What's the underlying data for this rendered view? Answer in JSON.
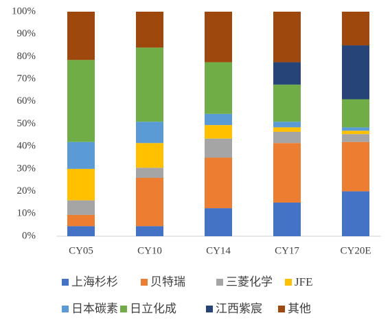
{
  "chart_data": {
    "type": "stacked_bar",
    "categories": [
      "CY05",
      "CY10",
      "CY14",
      "CY17",
      "CY20E"
    ],
    "series": [
      {
        "name": "上海杉杉",
        "color": "#4472c4",
        "values": [
          4.5,
          4.5,
          12.5,
          15,
          20
        ]
      },
      {
        "name": "贝特瑞",
        "color": "#ed7d31",
        "values": [
          5,
          21.5,
          22.5,
          26.5,
          22
        ]
      },
      {
        "name": "三菱化学",
        "color": "#a5a5a5",
        "values": [
          6.5,
          4.5,
          8.5,
          5,
          3.5
        ]
      },
      {
        "name": "JFE",
        "color": "#ffc000",
        "values": [
          14,
          11,
          6,
          2,
          1.5
        ]
      },
      {
        "name": "日本碳素",
        "color": "#5b9bd5",
        "values": [
          12,
          9.5,
          5,
          2.5,
          1.5
        ]
      },
      {
        "name": "日立化成",
        "color": "#70ad47",
        "values": [
          36.5,
          33,
          23,
          16.5,
          12.5
        ]
      },
      {
        "name": "江西紫宸",
        "color": "#264478",
        "values": [
          0,
          0,
          0,
          10,
          24
        ]
      },
      {
        "name": "其他",
        "color": "#9e480e",
        "values": [
          21.5,
          16,
          22.5,
          22.5,
          15
        ]
      }
    ],
    "ylim": [
      0,
      100
    ],
    "yticks": [
      {
        "value": 0,
        "label": "0%"
      },
      {
        "value": 10,
        "label": "10%"
      },
      {
        "value": 20,
        "label": "20%"
      },
      {
        "value": 30,
        "label": "30%"
      },
      {
        "value": 40,
        "label": "40%"
      },
      {
        "value": 50,
        "label": "50%"
      },
      {
        "value": 60,
        "label": "60%"
      },
      {
        "value": 70,
        "label": "70%"
      },
      {
        "value": 80,
        "label": "80%"
      },
      {
        "value": 90,
        "label": "90%"
      },
      {
        "value": 100,
        "label": "100%"
      }
    ],
    "grid": false
  }
}
